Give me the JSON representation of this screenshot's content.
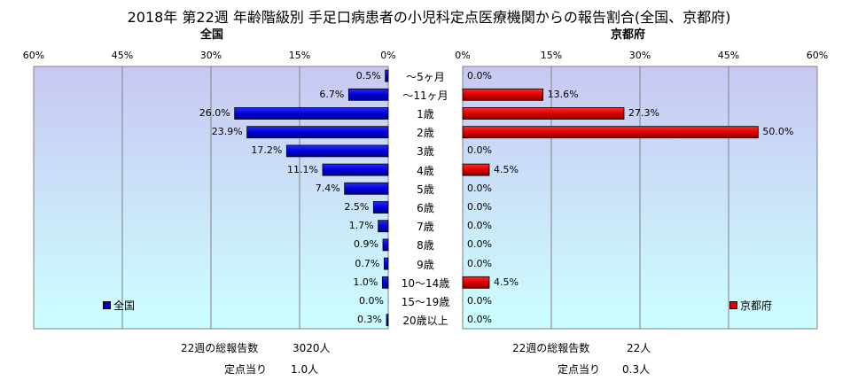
{
  "title": "2018年 第22週 年齢階級別 手足口病患者の小児科定点医療機関からの報告割合(全国、京都府)",
  "categories": [
    "〜5ヶ月",
    "〜11ヶ月",
    "1歳",
    "2歳",
    "3歳",
    "4歳",
    "5歳",
    "6歳",
    "7歳",
    "8歳",
    "9歳",
    "10〜14歳",
    "15〜19歳",
    "20歳以上"
  ],
  "colors": {
    "national": "#0000cc",
    "kyoto": "#dd0000"
  },
  "chart_data": [
    {
      "type": "bar",
      "title": "全国",
      "orientation": "horizontal-reversed",
      "xlim": [
        0,
        60
      ],
      "ticks": [
        "60%",
        "45%",
        "30%",
        "15%",
        "0%"
      ],
      "series": [
        {
          "name": "全国",
          "values": [
            0.5,
            6.7,
            26.0,
            23.9,
            17.2,
            11.1,
            7.4,
            2.5,
            1.7,
            0.9,
            0.7,
            1.0,
            0.0,
            0.3
          ],
          "labels": [
            "0.5%",
            "6.7%",
            "26.0%",
            "23.9%",
            "17.2%",
            "11.1%",
            "7.4%",
            "2.5%",
            "1.7%",
            "0.9%",
            "0.7%",
            "1.0%",
            "0.0%",
            "0.3%"
          ]
        }
      ]
    },
    {
      "type": "bar",
      "title": "京都府",
      "orientation": "horizontal",
      "xlim": [
        0,
        60
      ],
      "ticks": [
        "0%",
        "15%",
        "30%",
        "45%",
        "60%"
      ],
      "series": [
        {
          "name": "京都府",
          "values": [
            0.0,
            13.6,
            27.3,
            50.0,
            0.0,
            4.5,
            0.0,
            0.0,
            0.0,
            0.0,
            0.0,
            4.5,
            0.0,
            0.0
          ],
          "labels": [
            "0.0%",
            "13.6%",
            "27.3%",
            "50.0%",
            "0.0%",
            "4.5%",
            "0.0%",
            "0.0%",
            "0.0%",
            "0.0%",
            "0.0%",
            "4.5%",
            "0.0%",
            "0.0%"
          ]
        }
      ]
    }
  ],
  "footer": {
    "national_total_label": "22週の総報告数",
    "national_total_value": "3020人",
    "national_per_label": "定点当り",
    "national_per_value": "1.0人",
    "kyoto_total_label": "22週の総報告数",
    "kyoto_total_value": "22人",
    "kyoto_per_label": "定点当り",
    "kyoto_per_value": "0.3人"
  }
}
